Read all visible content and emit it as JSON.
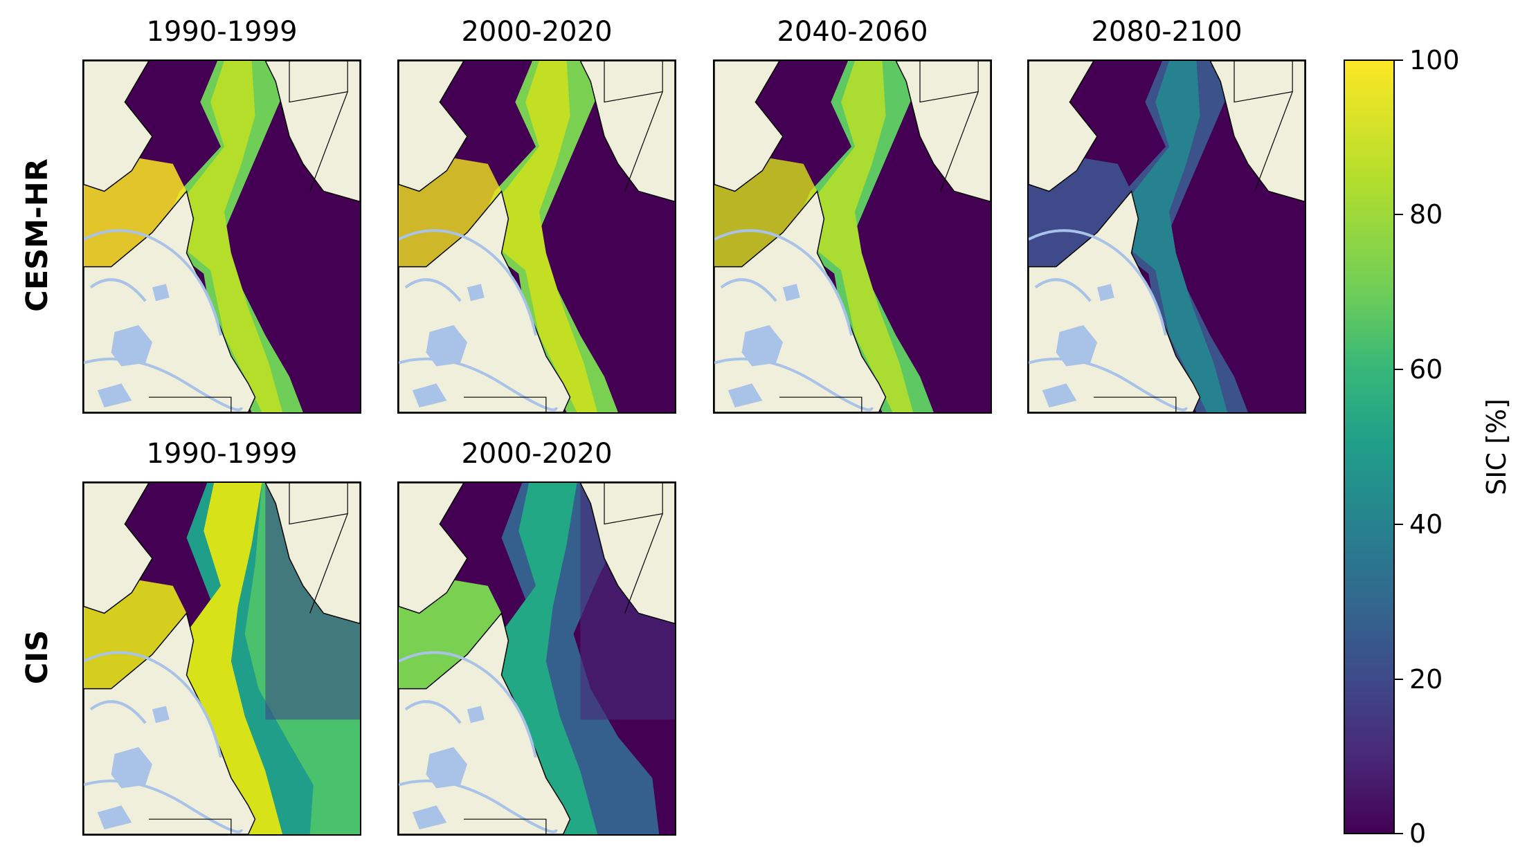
{
  "rows": [
    {
      "label": "CESM-HR",
      "panels": [
        {
          "title": "1990-1999",
          "style": "hr1"
        },
        {
          "title": "2000-2020",
          "style": "hr2"
        },
        {
          "title": "2040-2060",
          "style": "hr3"
        },
        {
          "title": "2080-2100",
          "style": "hr4"
        }
      ]
    },
    {
      "label": "CIS",
      "panels": [
        {
          "title": "1990-1999",
          "style": "cis1"
        },
        {
          "title": "2000-2020",
          "style": "cis2"
        }
      ]
    }
  ],
  "colorbar": {
    "label": "SIC [%]",
    "ticks": [
      "100",
      "80",
      "60",
      "40",
      "20",
      "0"
    ],
    "range": [
      0,
      100
    ],
    "colormap": "viridis"
  },
  "colors": {
    "land": "#efefdb",
    "lakes": "#a8c2e8",
    "open_water": "#440154",
    "high_ice": "#f1e51d"
  }
}
